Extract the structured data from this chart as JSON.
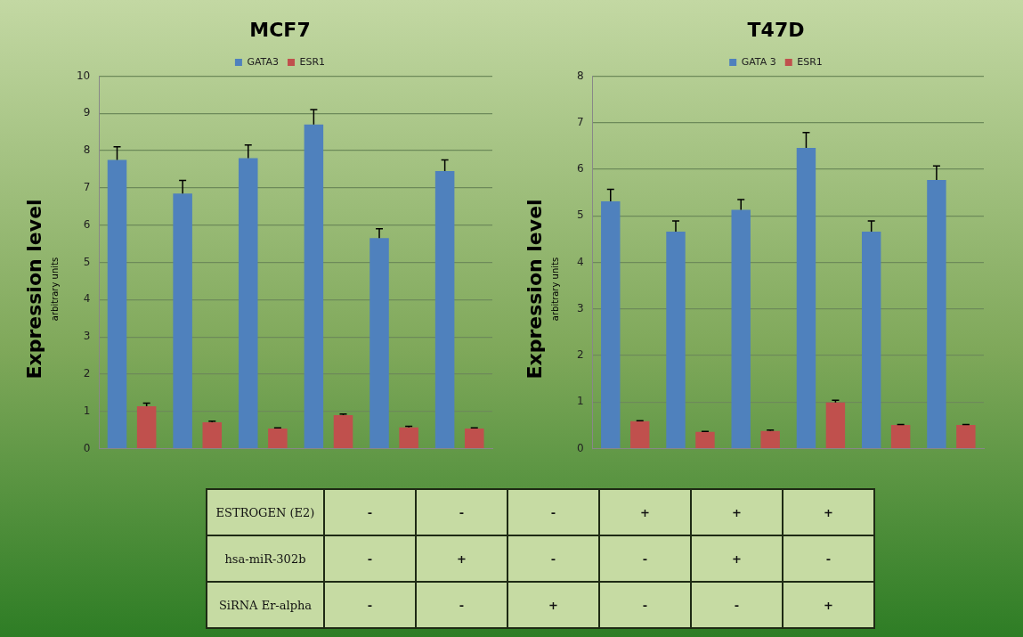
{
  "chart_data": [
    {
      "type": "bar",
      "title": "MCF7",
      "ylabel": "Expression level\narbitrary units",
      "categories": [
        null,
        null,
        null,
        null,
        null,
        null
      ],
      "ylim": [
        0,
        10
      ],
      "yticks": [
        0,
        1,
        2,
        3,
        4,
        5,
        6,
        7,
        8,
        9,
        10
      ],
      "grid": "y",
      "legend": "top",
      "series": [
        {
          "name": "GATA3",
          "color": "#4f81bd",
          "values": [
            7.75,
            6.85,
            7.8,
            8.7,
            5.65,
            7.45
          ],
          "errors": [
            [
              7.75,
              8.1
            ],
            [
              6.85,
              7.2
            ],
            [
              7.8,
              8.15
            ],
            [
              8.7,
              9.1
            ],
            [
              5.65,
              5.9
            ],
            [
              7.45,
              7.75
            ]
          ]
        },
        {
          "name": "ESR1",
          "color": "#c0504d",
          "values": [
            1.14,
            0.71,
            0.54,
            0.9,
            0.57,
            0.54
          ],
          "errors": [
            [
              1.14,
              1.22
            ],
            [
              0.71,
              0.74
            ],
            [
              0.54,
              0.56
            ],
            [
              0.9,
              0.93
            ],
            [
              0.57,
              0.6
            ],
            [
              0.54,
              0.56
            ]
          ]
        }
      ]
    },
    {
      "type": "bar",
      "title": "T47D",
      "ylabel": "Expression level\narbitrary units",
      "categories": [
        null,
        null,
        null,
        null,
        null,
        null
      ],
      "ylim": [
        0,
        8
      ],
      "yticks": [
        0,
        1,
        2,
        3,
        4,
        5,
        6,
        7,
        8
      ],
      "grid": "y",
      "legend": "top",
      "series": [
        {
          "name": "GATA 3",
          "color": "#4f81bd",
          "values": [
            5.31,
            4.66,
            5.13,
            6.46,
            4.66,
            5.77
          ],
          "errors": [
            [
              5.31,
              5.57
            ],
            [
              4.66,
              4.89
            ],
            [
              5.13,
              5.35
            ],
            [
              6.46,
              6.79
            ],
            [
              4.66,
              4.89
            ],
            [
              5.77,
              6.07
            ]
          ]
        },
        {
          "name": "ESR1",
          "color": "#c0504d",
          "values": [
            0.59,
            0.36,
            0.38,
            0.99,
            0.51,
            0.51
          ],
          "errors": [
            [
              0.59,
              0.6
            ],
            [
              0.36,
              0.37
            ],
            [
              0.38,
              0.4
            ],
            [
              0.99,
              1.04
            ],
            [
              0.51,
              0.52
            ],
            [
              0.51,
              0.52
            ]
          ]
        }
      ]
    },
    {
      "type": "other",
      "y_categories": [
        "ESTROGEN (E2)",
        "hsa-miR-302b",
        "SiRNA Er-alpha"
      ],
      "cell_labels": [
        [
          "-",
          "-",
          "-",
          "+",
          "+",
          "+"
        ],
        [
          "-",
          "+",
          "-",
          "-",
          "+",
          "-"
        ],
        [
          "-",
          "-",
          "+",
          "-",
          "-",
          "+"
        ]
      ]
    }
  ]
}
